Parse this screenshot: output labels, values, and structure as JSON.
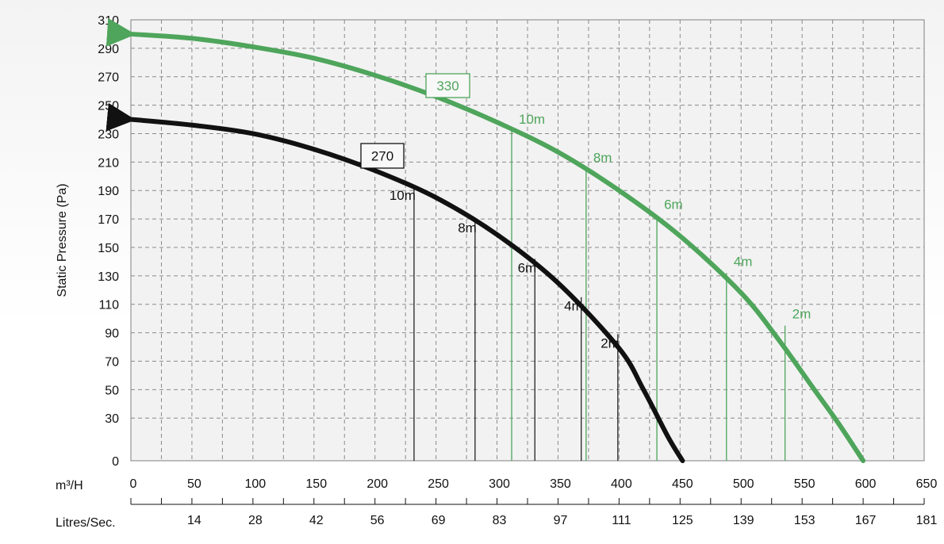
{
  "chart_data": {
    "type": "line",
    "ylabel": "Static Pressure (Pa)",
    "xlabel": "m³/H",
    "x2label": "Litres/Sec.",
    "xlim": [
      0,
      650
    ],
    "ylim": [
      0,
      310
    ],
    "x_ticks": [
      0,
      50,
      100,
      150,
      200,
      250,
      300,
      350,
      400,
      450,
      500,
      550,
      600,
      650
    ],
    "y_ticks": [
      0,
      30,
      50,
      70,
      90,
      110,
      130,
      150,
      170,
      190,
      210,
      230,
      250,
      270,
      290,
      310
    ],
    "x2_ticks": [
      {
        "m3h": 50,
        "label": "14"
      },
      {
        "m3h": 100,
        "label": "28"
      },
      {
        "m3h": 150,
        "label": "42"
      },
      {
        "m3h": 200,
        "label": "56"
      },
      {
        "m3h": 250,
        "label": "69"
      },
      {
        "m3h": 300,
        "label": "83"
      },
      {
        "m3h": 350,
        "label": "97"
      },
      {
        "m3h": 400,
        "label": "111"
      },
      {
        "m3h": 450,
        "label": "125"
      },
      {
        "m3h": 500,
        "label": "139"
      },
      {
        "m3h": 550,
        "label": "153"
      },
      {
        "m3h": 600,
        "label": "167"
      },
      {
        "m3h": 650,
        "label": "181"
      }
    ],
    "grid": true,
    "series": [
      {
        "name": "330",
        "color": "#4ea55b",
        "x": [
          0,
          50,
          100,
          150,
          200,
          250,
          300,
          350,
          400,
          450,
          500,
          530,
          560,
          580,
          600
        ],
        "y": [
          300,
          297,
          291,
          283,
          271,
          256,
          238,
          217,
          190,
          158,
          118,
          86,
          50,
          26,
          0
        ],
        "markers": [
          {
            "label": "10m",
            "x": 312,
            "y": 232
          },
          {
            "label": "8m",
            "x": 373,
            "y": 205
          },
          {
            "label": "6m",
            "x": 431,
            "y": 172
          },
          {
            "label": "4m",
            "x": 488,
            "y": 132
          },
          {
            "label": "2m",
            "x": 536,
            "y": 95
          }
        ]
      },
      {
        "name": "270",
        "color": "#111111",
        "x": [
          0,
          50,
          100,
          150,
          200,
          250,
          300,
          350,
          400,
          420,
          440,
          452
        ],
        "y": [
          240,
          236,
          230,
          219,
          204,
          185,
          159,
          125,
          79,
          50,
          17,
          0
        ],
        "markers": [
          {
            "label": "10m",
            "x": 232,
            "y": 193
          },
          {
            "label": "8m",
            "x": 282,
            "y": 170
          },
          {
            "label": "6m",
            "x": 331,
            "y": 142
          },
          {
            "label": "4m",
            "x": 369,
            "y": 115
          },
          {
            "label": "2m",
            "x": 399,
            "y": 89
          }
        ]
      }
    ]
  }
}
